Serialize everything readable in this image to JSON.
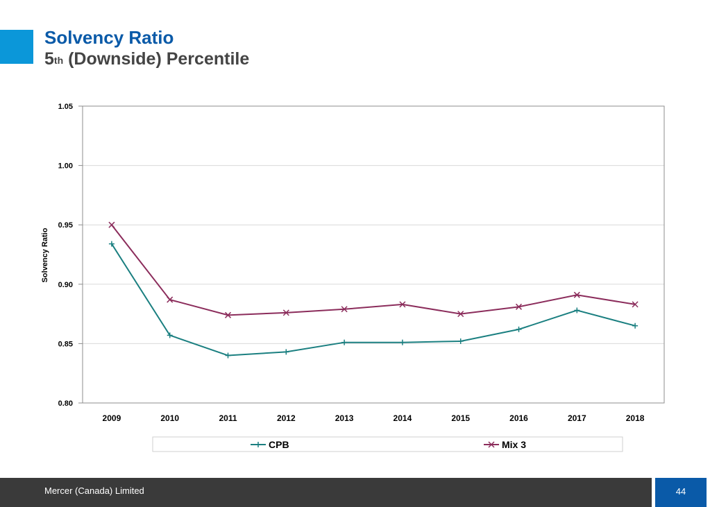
{
  "header": {
    "title": "Solvency Ratio",
    "subtitle_number": "5",
    "subtitle_sup": "th",
    "subtitle_rest": " (Downside) Percentile"
  },
  "chart_data": {
    "type": "line",
    "title": "",
    "xlabel": "",
    "ylabel": "Solvency Ratio",
    "x": [
      "2009",
      "2010",
      "2011",
      "2012",
      "2013",
      "2014",
      "2015",
      "2016",
      "2017",
      "2018"
    ],
    "ylim": [
      0.8,
      1.05
    ],
    "yticks": [
      "0.80",
      "0.85",
      "0.90",
      "0.95",
      "1.00",
      "1.05"
    ],
    "grid": true,
    "legend_position": "bottom",
    "series": [
      {
        "name": "CPB",
        "marker": "plus",
        "color": "#1a7f80",
        "values": [
          0.934,
          0.857,
          0.84,
          0.843,
          0.851,
          0.851,
          0.852,
          0.862,
          0.878,
          0.865
        ]
      },
      {
        "name": "Mix 3",
        "marker": "x",
        "color": "#8b2c5b",
        "values": [
          0.95,
          0.887,
          0.874,
          0.876,
          0.879,
          0.883,
          0.875,
          0.881,
          0.891,
          0.883
        ]
      }
    ]
  },
  "footer": {
    "company": "Mercer (Canada) Limited",
    "page_number": "44"
  }
}
